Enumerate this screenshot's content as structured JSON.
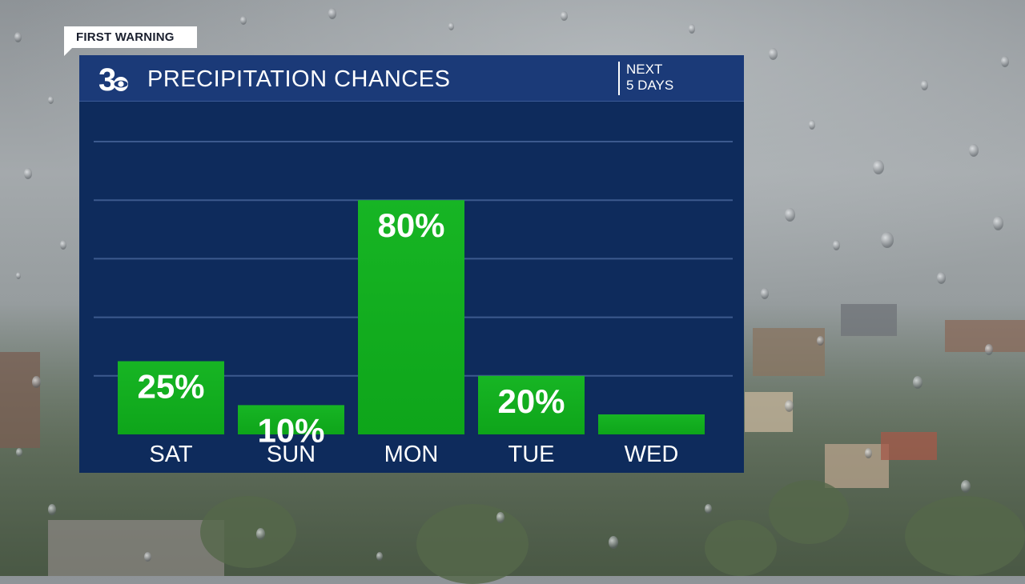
{
  "badge": {
    "label": "FIRST WARNING"
  },
  "header": {
    "title": "PRECIPITATION CHANCES",
    "next_line1": "NEXT",
    "next_line2": "5 DAYS"
  },
  "logo": {
    "name": "channel-3-logo",
    "numeral": "3"
  },
  "colors": {
    "panel": "#0e2b5c",
    "header": "#1b3a78",
    "bar": "#0ea51a",
    "bar_top": "#17b524",
    "grid": "#3c5a8e"
  },
  "chart_data": {
    "type": "bar",
    "categories": [
      "SAT",
      "SUN",
      "MON",
      "TUE",
      "WED"
    ],
    "values": [
      25,
      10,
      80,
      20,
      0
    ],
    "labels": [
      "25%",
      "10%",
      "80%",
      "20%",
      ""
    ],
    "unit": "%",
    "ylim": [
      0,
      100
    ],
    "grid": true
  }
}
